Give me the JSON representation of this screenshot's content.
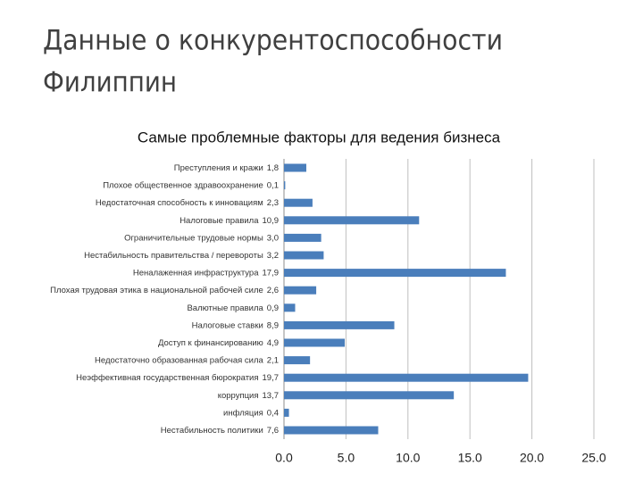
{
  "slide": {
    "title": [
      "Данные о конкурентоспособности",
      "Филиппин"
    ]
  },
  "chart_data": {
    "type": "bar",
    "orientation": "horizontal",
    "title": "Самые проблемные факторы для ведения бизнеса",
    "categories": [
      "Преступления и кражи",
      "Плохое общественное здравоохранение",
      "Недостаточная способность к инновациям",
      "Налоговые правила",
      "Ограничительные трудовые нормы",
      "Нестабильность правительства / перевороты",
      "Неналаженная инфраструктура",
      "Плохая трудовая этика в национальной рабочей силе",
      "Валютные правила",
      "Налоговые ставки",
      "Доступ к финансированию",
      "Недостаточно образованная рабочая сила",
      "Неэффективная государственная бюрократия",
      "коррупция",
      "инфляция",
      "Нестабильность политики"
    ],
    "values": [
      1.8,
      0.1,
      2.3,
      10.9,
      3.0,
      3.2,
      17.9,
      2.6,
      0.9,
      8.9,
      4.9,
      2.1,
      19.7,
      13.7,
      0.4,
      7.6
    ],
    "value_labels": [
      "1,8",
      "0,1",
      "2,3",
      "10,9",
      "3,0",
      "3,2",
      "17,9",
      "2,6",
      "0,9",
      "8,9",
      "4,9",
      "2,1",
      "19,7",
      "13,7",
      "0,4",
      "7,6"
    ],
    "color": "#4a7ebb",
    "xlim": [
      0,
      25
    ],
    "xticks": [
      {
        "value": 0,
        "label": "0.0"
      },
      {
        "value": 5,
        "label": "5.0"
      },
      {
        "value": 10,
        "label": "10.0"
      },
      {
        "value": 15,
        "label": "15.0"
      },
      {
        "value": 20,
        "label": "20.0"
      },
      {
        "value": 25,
        "label": "25.0"
      }
    ],
    "grid": true
  }
}
